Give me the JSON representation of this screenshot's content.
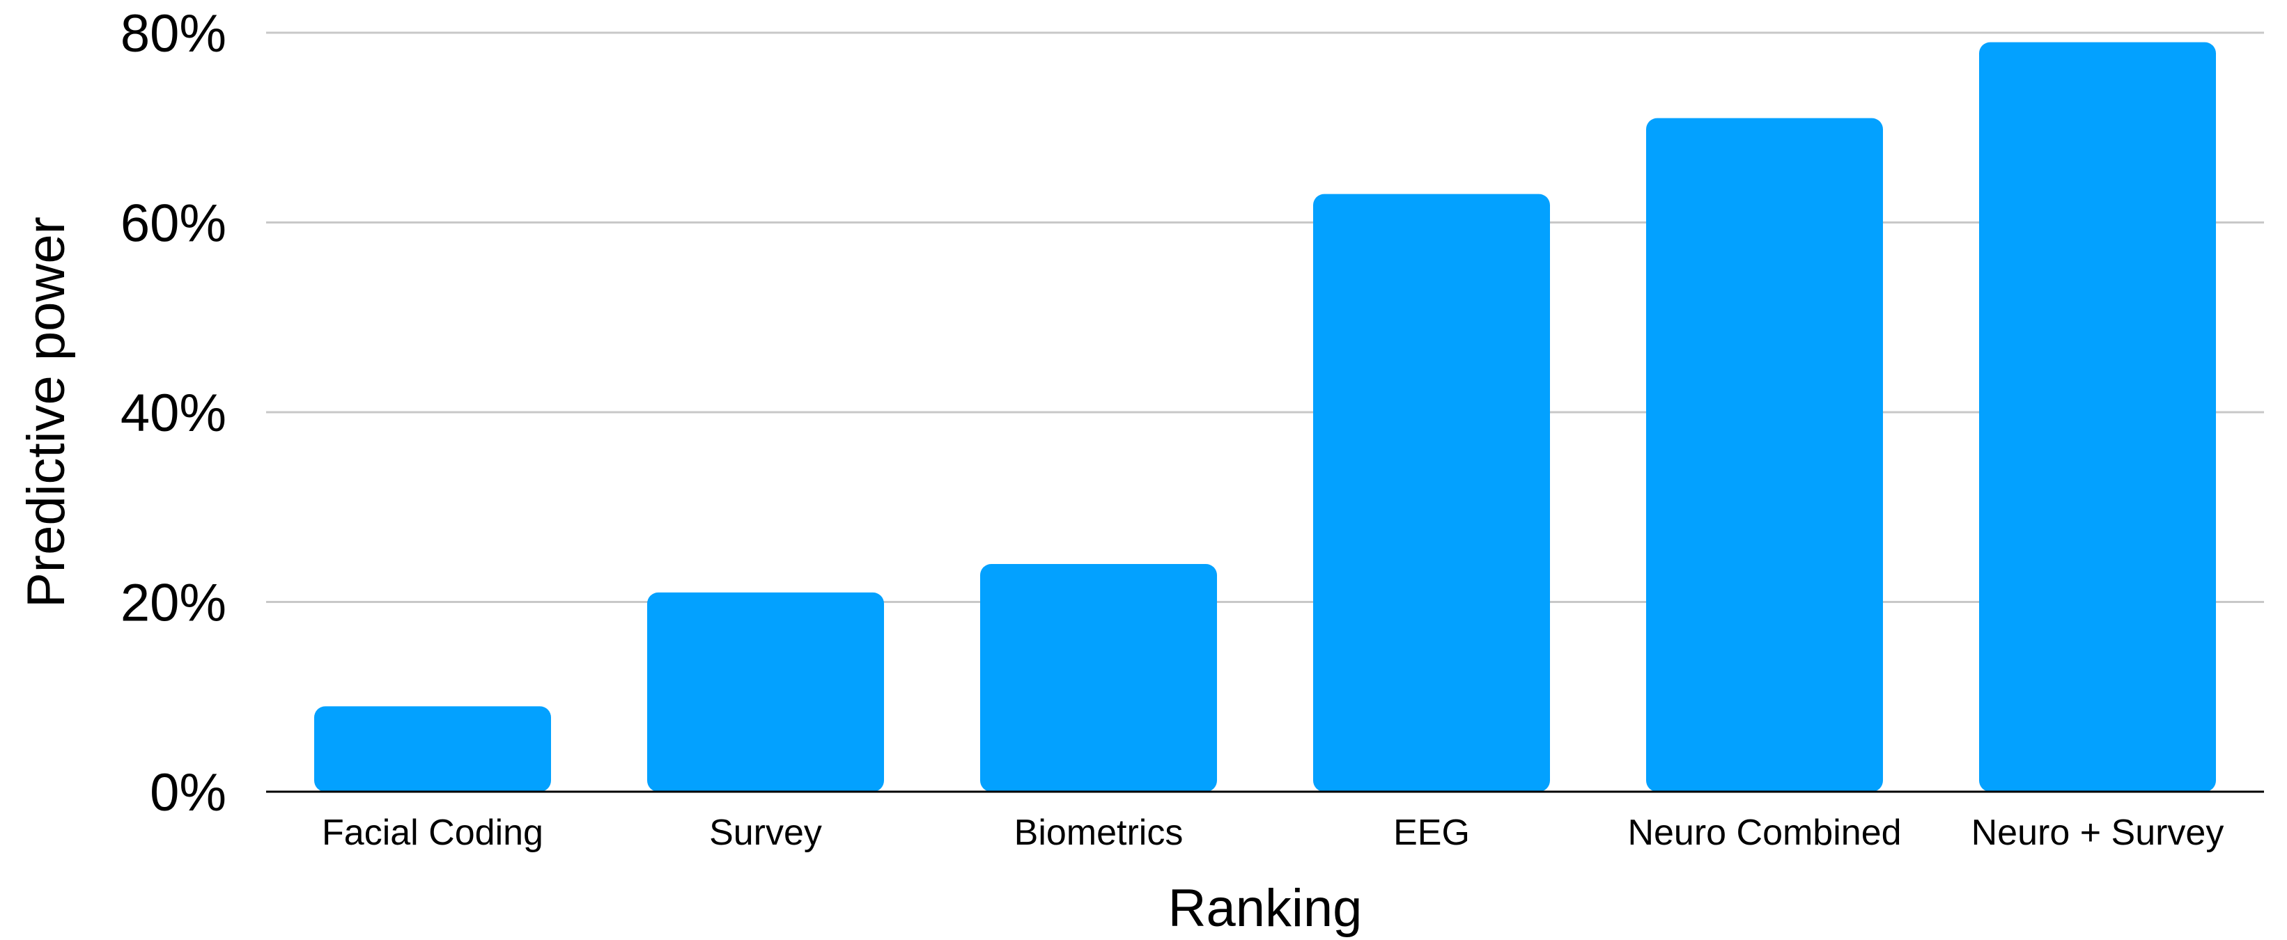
{
  "chart_data": {
    "type": "bar",
    "title": "",
    "xlabel": "Ranking",
    "ylabel": "Predictive power",
    "categories": [
      "Facial Coding",
      "Survey",
      "Biometrics",
      "EEG",
      "Neuro Combined",
      "Neuro + Survey"
    ],
    "values": [
      9,
      21,
      24,
      63,
      71,
      79
    ],
    "value_unit": "%",
    "ylim": [
      0,
      80
    ],
    "yticks": [
      0,
      20,
      40,
      60,
      80
    ],
    "ytick_labels": [
      "0%",
      "20%",
      "40%",
      "60%",
      "80%"
    ],
    "grid": true,
    "legend": "none",
    "bar_color": "#03a1ff"
  }
}
